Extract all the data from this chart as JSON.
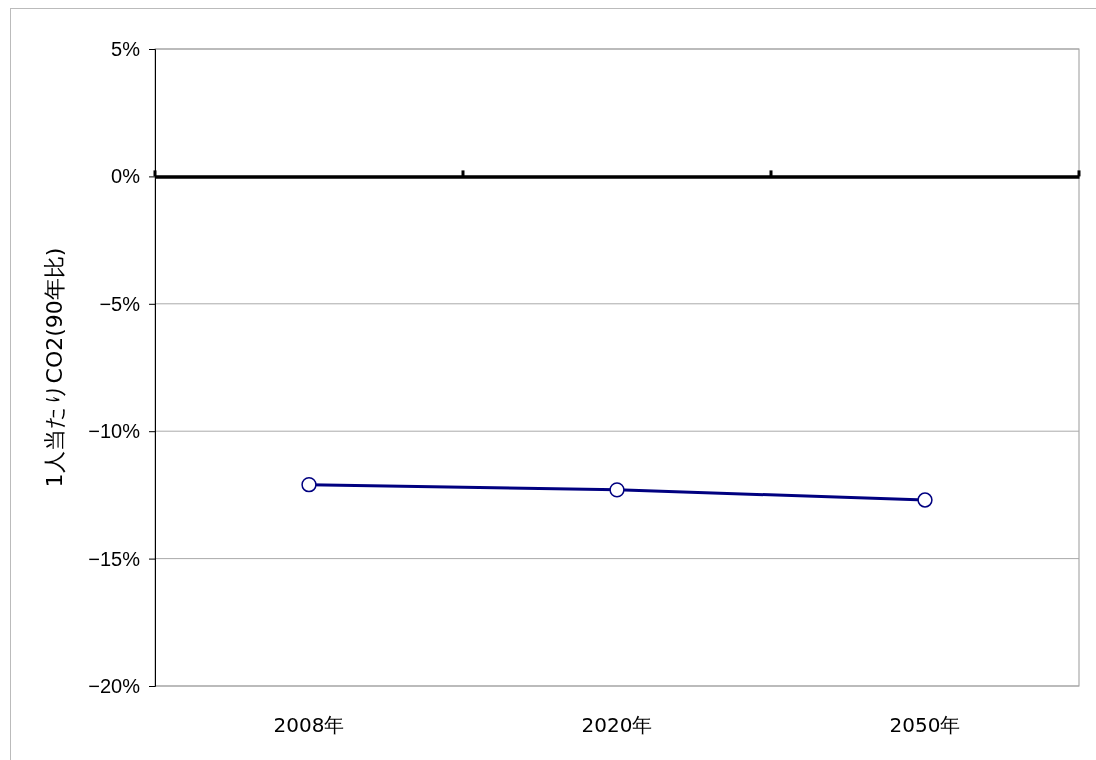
{
  "chart_data": {
    "type": "line",
    "ylabel": "1人当たりCO2(90年比)",
    "categories": [
      "2008年",
      "2020年",
      "2050年"
    ],
    "series": [
      {
        "color": "#000080",
        "values": [
          -12.1,
          -12.3,
          -12.7
        ]
      }
    ],
    "ylim": [
      -20,
      5
    ],
    "yticks": [
      {
        "value": 5,
        "label": "5%"
      },
      {
        "value": 0,
        "label": "0%"
      },
      {
        "value": -5,
        "label": "−5%"
      },
      {
        "value": -10,
        "label": "−10%"
      },
      {
        "value": -15,
        "label": "−15%"
      },
      {
        "value": -20,
        "label": "−20%"
      }
    ],
    "grid": "y",
    "marker": "circle",
    "line_style": "solid"
  }
}
